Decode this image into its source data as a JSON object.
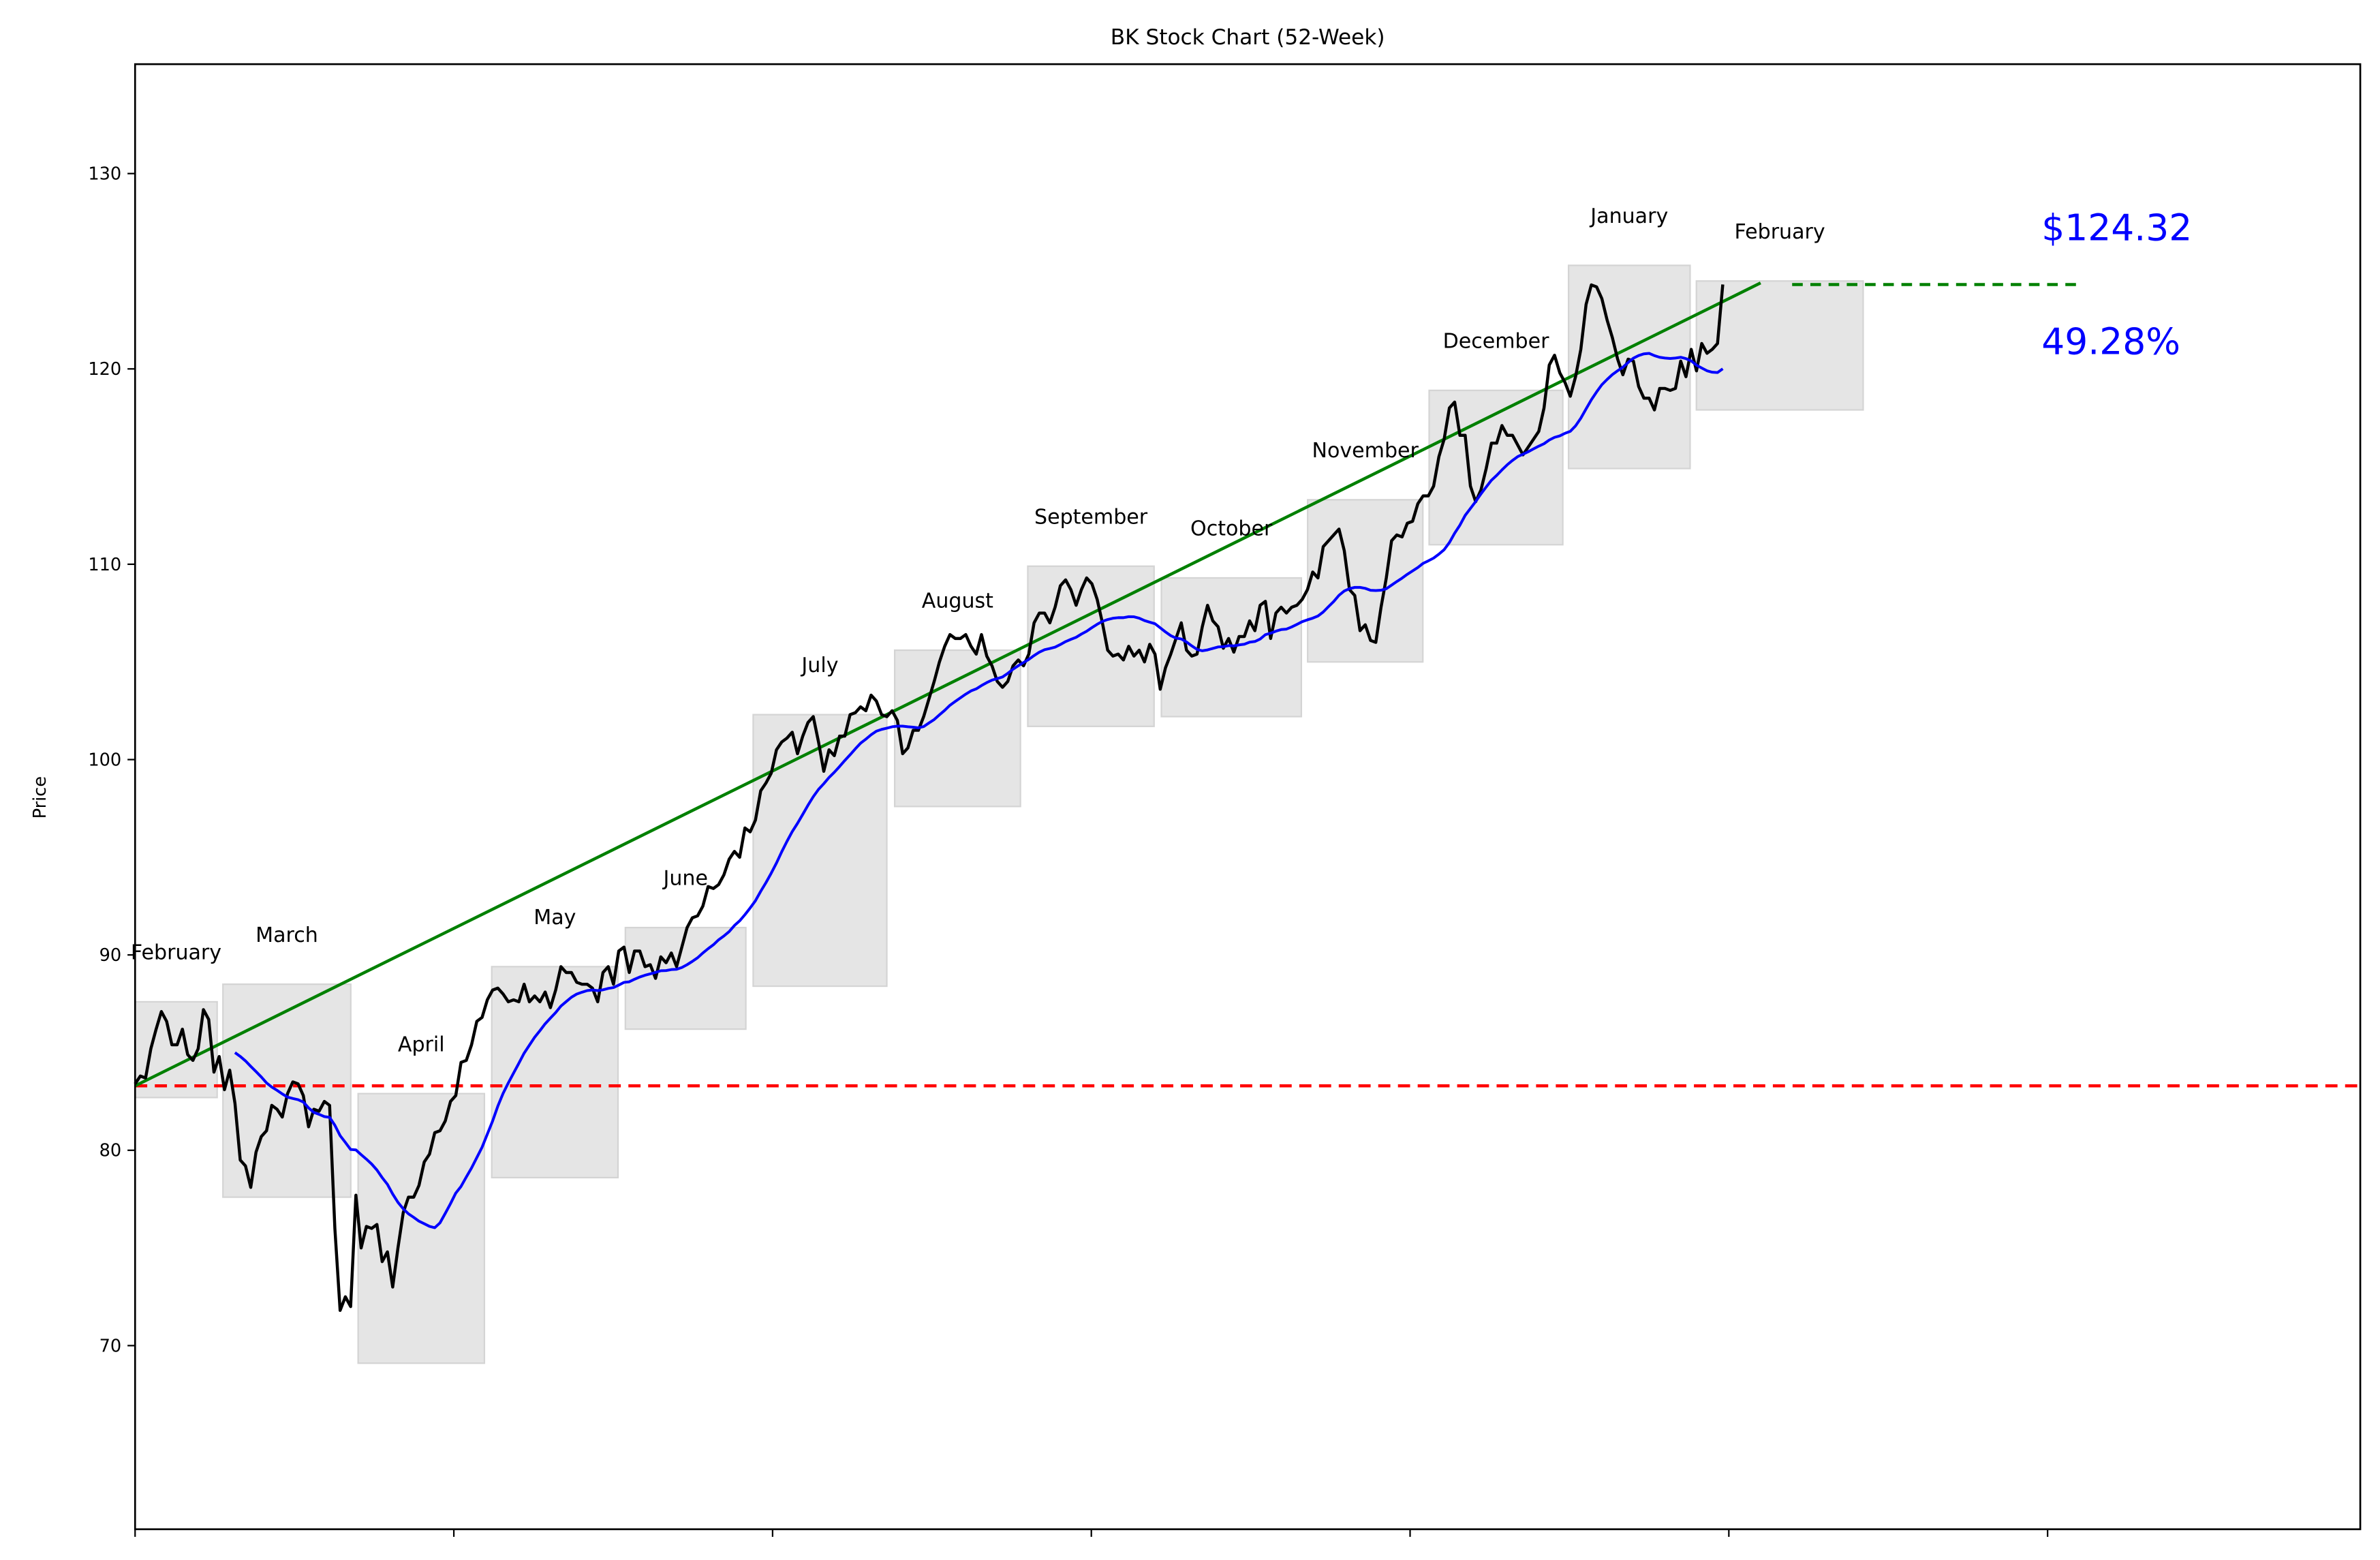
{
  "chart_data": {
    "type": "line",
    "title": "BK Stock Chart (52-Week)",
    "xlabel": "",
    "ylabel": "Price",
    "ylim": [
      60.6,
      135.6
    ],
    "xlim": [
      0,
      423
    ],
    "yticks": [
      70,
      80,
      90,
      100,
      110,
      120,
      130
    ],
    "xtick_labels_visible": false,
    "grid": false,
    "legend": "none",
    "colors": {
      "price": "#000000",
      "moving_average": "#0000ff",
      "trend": "#008000",
      "baseline": "#ff0000",
      "month_box": "#e5e5e5",
      "annotation": "#0000ff"
    },
    "price_series": [
      83.4,
      83.8,
      83.7,
      85.2,
      86.2,
      87.1,
      86.6,
      85.4,
      85.4,
      86.2,
      84.9,
      84.6,
      85.2,
      87.2,
      86.7,
      84.0,
      84.8,
      83.1,
      84.1,
      82.4,
      79.5,
      79.2,
      78.1,
      79.9,
      80.7,
      81.0,
      82.3,
      82.1,
      81.7,
      82.9,
      83.5,
      83.4,
      82.8,
      81.2,
      82.1,
      82.0,
      82.5,
      82.3,
      76.0,
      71.8,
      72.5,
      72.0,
      77.7,
      75.0,
      76.1,
      76.0,
      76.2,
      74.3,
      74.8,
      73.0,
      75.0,
      76.8,
      77.6,
      77.6,
      78.2,
      79.4,
      79.8,
      80.9,
      81.0,
      81.5,
      82.5,
      82.8,
      84.5,
      84.6,
      85.4,
      86.6,
      86.8,
      87.7,
      88.2,
      88.3,
      88.0,
      87.6,
      87.7,
      87.6,
      88.5,
      87.6,
      87.9,
      87.6,
      88.1,
      87.3,
      88.2,
      89.4,
      89.1,
      89.1,
      88.6,
      88.5,
      88.5,
      88.3,
      87.6,
      89.1,
      89.4,
      88.5,
      90.2,
      90.4,
      89.1,
      90.2,
      90.2,
      89.4,
      89.5,
      88.8,
      89.9,
      89.6,
      90.1,
      89.4,
      90.4,
      91.4,
      91.9,
      92.0,
      92.5,
      93.5,
      93.4,
      93.6,
      94.1,
      94.9,
      95.3,
      95.0,
      96.5,
      96.3,
      96.9,
      98.4,
      98.8,
      99.3,
      100.5,
      100.9,
      101.1,
      101.4,
      100.3,
      101.2,
      101.9,
      102.2,
      100.9,
      99.4,
      100.5,
      100.2,
      101.2,
      101.2,
      102.3,
      102.4,
      102.7,
      102.5,
      103.3,
      103.0,
      102.3,
      102.2,
      102.5,
      102.0,
      100.3,
      100.6,
      101.5,
      101.5,
      102.2,
      103.1,
      104.0,
      105.0,
      105.8,
      106.4,
      106.2,
      106.2,
      106.4,
      105.8,
      105.4,
      106.4,
      105.3,
      104.8,
      104.0,
      103.7,
      104.0,
      104.8,
      105.1,
      104.8,
      105.4,
      107.0,
      107.5,
      107.5,
      107.0,
      107.8,
      108.9,
      109.2,
      108.7,
      107.9,
      108.7,
      109.3,
      109.0,
      108.2,
      107.0,
      105.6,
      105.3,
      105.4,
      105.1,
      105.8,
      105.3,
      105.6,
      105.0,
      105.9,
      105.4,
      103.6,
      104.7,
      105.4,
      106.2,
      107.0,
      105.6,
      105.3,
      105.4,
      106.8,
      107.9,
      107.1,
      106.8,
      105.7,
      106.2,
      105.5,
      106.3,
      106.3,
      107.1,
      106.6,
      107.9,
      108.1,
      106.2,
      107.5,
      107.8,
      107.5,
      107.8,
      107.9,
      108.2,
      108.7,
      109.6,
      109.3,
      110.9,
      111.2,
      111.5,
      111.8,
      110.7,
      108.7,
      108.4,
      106.6,
      106.9,
      106.1,
      106.0,
      107.8,
      109.3,
      111.2,
      111.5,
      111.4,
      112.1,
      112.2,
      113.1,
      113.5,
      113.5,
      114.0,
      115.5,
      116.4,
      118.0,
      118.3,
      116.6,
      116.6,
      114.0,
      113.2,
      113.8,
      114.9,
      116.2,
      116.2,
      117.1,
      116.6,
      116.6,
      116.1,
      115.6,
      116.0,
      116.4,
      116.8,
      118.0,
      120.2,
      120.7,
      119.8,
      119.3,
      118.6,
      119.6,
      121.0,
      123.3,
      124.3,
      124.2,
      123.6,
      122.5,
      121.6,
      120.5,
      119.7,
      120.5,
      120.4,
      119.1,
      118.5,
      118.5,
      117.9,
      119.0,
      119.0,
      118.9,
      119.0,
      120.4,
      119.6,
      121.0,
      119.9,
      121.3,
      120.8,
      121.0,
      121.3,
      124.32
    ],
    "moving_average_window": 20,
    "months": [
      {
        "label": "February",
        "start": 0,
        "end": 15.6,
        "low": 82.7,
        "high": 87.6
      },
      {
        "label": "March",
        "start": 16.7,
        "end": 41.0,
        "low": 77.6,
        "high": 88.5
      },
      {
        "label": "April",
        "start": 42.4,
        "end": 66.4,
        "low": 69.1,
        "high": 82.9
      },
      {
        "label": "May",
        "start": 67.8,
        "end": 91.8,
        "low": 78.6,
        "high": 89.4
      },
      {
        "label": "June",
        "start": 93.2,
        "end": 116.1,
        "low": 86.2,
        "high": 91.4
      },
      {
        "label": "July",
        "start": 117.5,
        "end": 142.9,
        "low": 88.4,
        "high": 102.3
      },
      {
        "label": "August",
        "start": 144.4,
        "end": 168.3,
        "low": 97.6,
        "high": 105.6
      },
      {
        "label": "September",
        "start": 169.7,
        "end": 193.7,
        "low": 101.7,
        "high": 109.9
      },
      {
        "label": "October",
        "start": 195.1,
        "end": 221.7,
        "low": 102.2,
        "high": 109.3
      },
      {
        "label": "November",
        "start": 222.9,
        "end": 244.8,
        "low": 105.0,
        "high": 113.3
      },
      {
        "label": "December",
        "start": 246.0,
        "end": 271.4,
        "low": 111.0,
        "high": 118.9
      },
      {
        "label": "January",
        "start": 272.5,
        "end": 295.6,
        "low": 114.9,
        "high": 125.3
      },
      {
        "label": "February",
        "start": 296.8,
        "end": 328.5,
        "low": 117.9,
        "high": 124.5
      }
    ],
    "baseline_price": 83.3,
    "trend_line": {
      "start": [
        0,
        83.3
      ],
      "end": [
        309,
        124.4
      ]
    },
    "target_line": {
      "start": 315,
      "end": 369.5,
      "price": 124.32
    },
    "current_price_label": "$124.32",
    "change_label": "49.28%"
  }
}
